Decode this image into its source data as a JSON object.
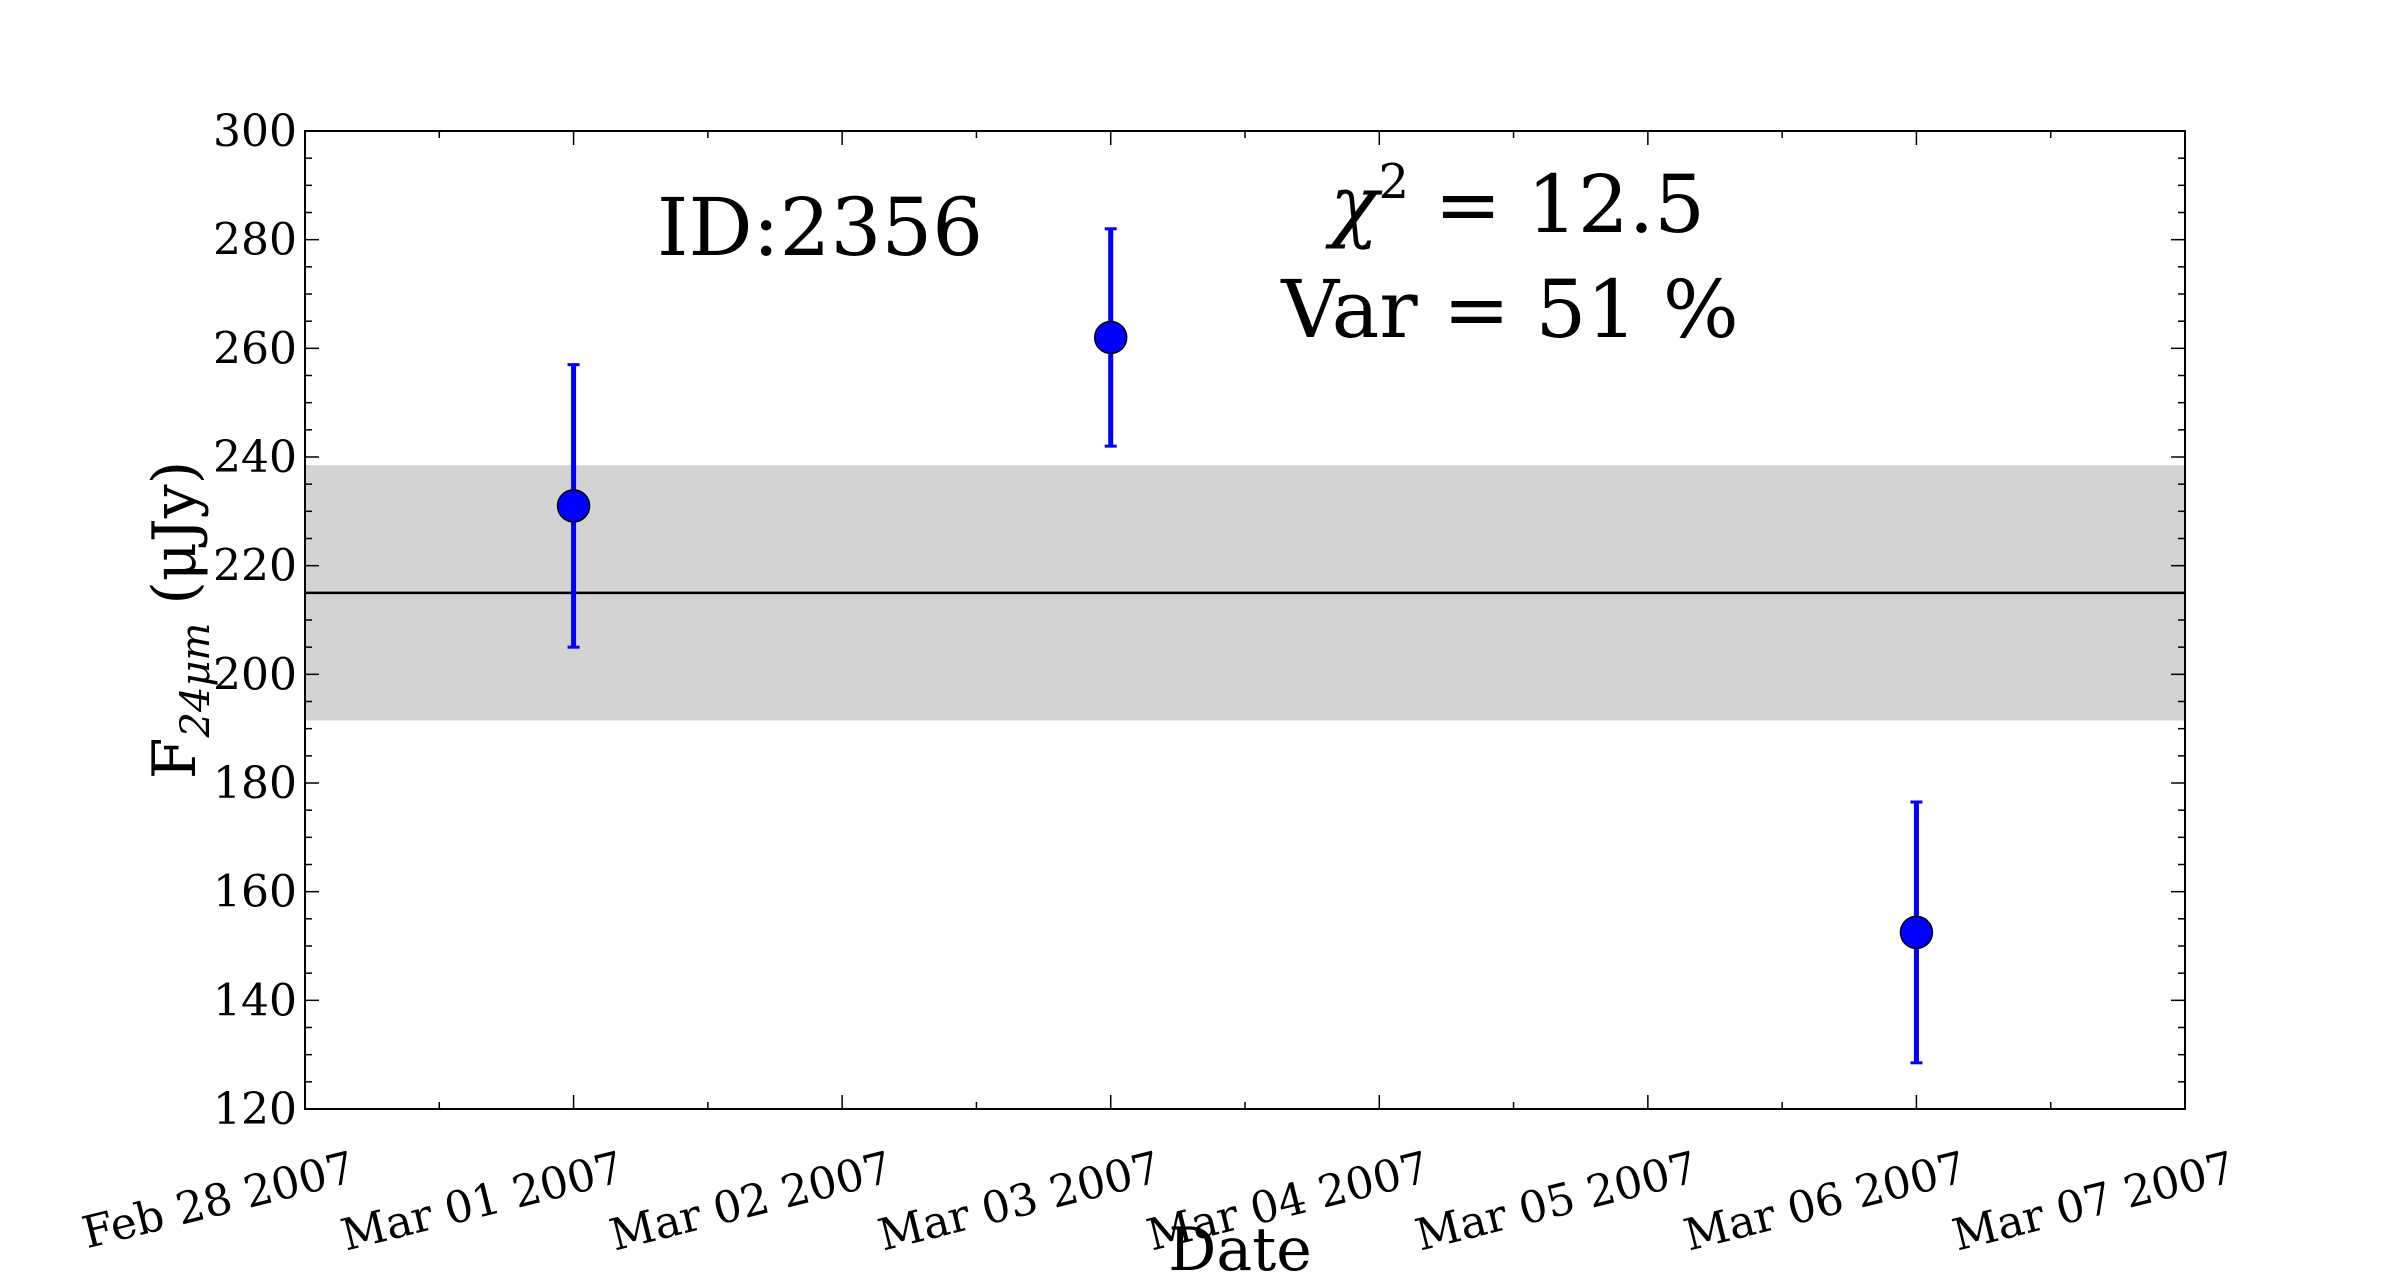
{
  "chart_data": {
    "type": "scatter",
    "title": "",
    "xlabel": "Date",
    "ylabel": {
      "main": "F",
      "subscript": "24μm",
      "unit": "(μJy)"
    },
    "xlim": [
      "2007-02-28",
      "2007-03-07"
    ],
    "ylim": [
      120,
      300
    ],
    "x_ticks": [
      "Feb 28 2007",
      "Mar 01 2007",
      "Mar 02 2007",
      "Mar 03 2007",
      "Mar 04 2007",
      "Mar 05 2007",
      "Mar 06 2007",
      "Mar 07 2007"
    ],
    "y_ticks": [
      "120",
      "140",
      "160",
      "180",
      "200",
      "220",
      "240",
      "260",
      "280",
      "300"
    ],
    "points": [
      {
        "x": "2007-03-01",
        "y": 231,
        "err": 26
      },
      {
        "x": "2007-03-03",
        "y": 262,
        "err": 20
      },
      {
        "x": "2007-03-06",
        "y": 152.5,
        "err": 24
      }
    ],
    "mean_line": 215,
    "band": [
      191.5,
      238.5
    ],
    "annotations": {
      "id": "ID:2356",
      "chi2_symbol": "χ",
      "chi2_power": "2",
      "chi2_value": " = 12.5",
      "var": "Var = 51 %"
    },
    "colors": {
      "points": "#0000ff",
      "band": "#d3d3d3",
      "mean_line": "#000000"
    },
    "grid": false,
    "legend": "none"
  }
}
